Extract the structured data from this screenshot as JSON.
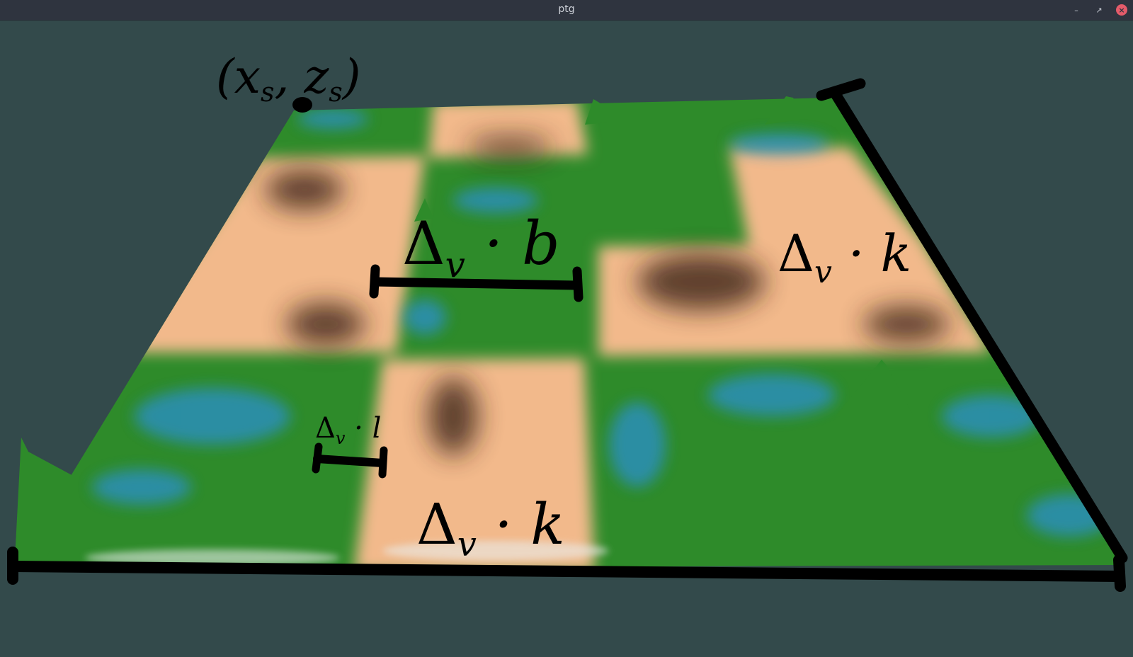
{
  "window": {
    "title": "ptg",
    "minimize_icon": "minimize-icon",
    "restore_icon": "restore-icon",
    "close_icon": "close-icon",
    "close_color": "#e45b6a"
  },
  "scene": {
    "background_color": "#334a4b",
    "terrain_colors": {
      "sand": "#f2b98b",
      "dark_earth": "#3a2414",
      "grass": "#2e8b2a",
      "water": "#2a8fcc",
      "snow": "#e8ecea"
    },
    "annotations": {
      "start_point": {
        "label_main": "(x",
        "sub1": "s",
        "sep": ", z",
        "sub2": "s",
        "close": ")"
      },
      "b_measure": {
        "delta": "Δ",
        "sub": "v",
        "rest": " · b"
      },
      "k_measure_right": {
        "delta": "Δ",
        "sub": "v",
        "rest": " · k"
      },
      "l_measure": {
        "delta": "Δ",
        "sub": "v",
        "rest": " · l"
      },
      "k_measure_bottom": {
        "delta": "Δ",
        "sub": "v",
        "rest": " · k"
      }
    }
  }
}
